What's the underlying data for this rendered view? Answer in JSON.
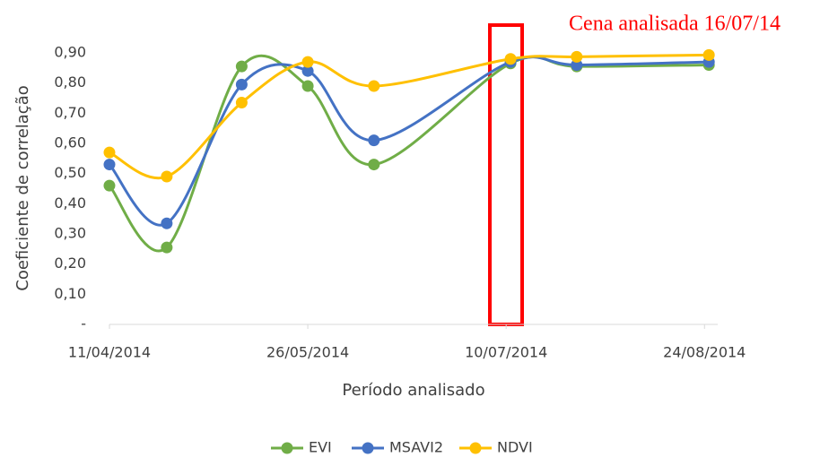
{
  "chart_data": {
    "type": "line",
    "annotation": "Cena analisada 16/07/14",
    "xlabel": "Período analisado",
    "ylabel": "Coeficiente de correlação",
    "x": [
      "2014-04-11",
      "2014-04-24",
      "2014-05-11",
      "2014-05-26",
      "2014-06-10",
      "2014-07-11",
      "2014-07-26",
      "2014-08-25"
    ],
    "series": [
      {
        "name": "EVI",
        "color": "#70ad47",
        "values": [
          0.46,
          0.255,
          0.855,
          0.79,
          0.53,
          0.865,
          0.855,
          0.86
        ]
      },
      {
        "name": "MSAVI2",
        "color": "#4472c4",
        "values": [
          0.53,
          0.335,
          0.795,
          0.84,
          0.61,
          0.87,
          0.86,
          0.87
        ]
      },
      {
        "name": "NDVI",
        "color": "#ffc000",
        "values": [
          0.57,
          0.49,
          0.735,
          0.87,
          0.79,
          0.88,
          0.887,
          0.893
        ]
      }
    ],
    "xlim": [
      "2014-04-11",
      "2014-08-27"
    ],
    "xticks": [
      {
        "value": "2014-04-11",
        "label": "11/04/2014"
      },
      {
        "value": "2014-05-26",
        "label": "26/05/2014"
      },
      {
        "value": "2014-07-10",
        "label": "10/07/2014"
      },
      {
        "value": "2014-08-24",
        "label": "24/08/2014"
      }
    ],
    "ylim": [
      0,
      0.9
    ],
    "yticks": [
      {
        "value": 0,
        "label": "-"
      },
      {
        "value": 0.1,
        "label": "0,10"
      },
      {
        "value": 0.2,
        "label": "0,20"
      },
      {
        "value": 0.3,
        "label": "0,30"
      },
      {
        "value": 0.4,
        "label": "0,40"
      },
      {
        "value": 0.5,
        "label": "0,50"
      },
      {
        "value": 0.6,
        "label": "0,60"
      },
      {
        "value": 0.7,
        "label": "0,70"
      },
      {
        "value": 0.8,
        "label": "0,80"
      },
      {
        "value": 0.9,
        "label": "0,90"
      }
    ],
    "legend": "bottom",
    "grid": false
  }
}
